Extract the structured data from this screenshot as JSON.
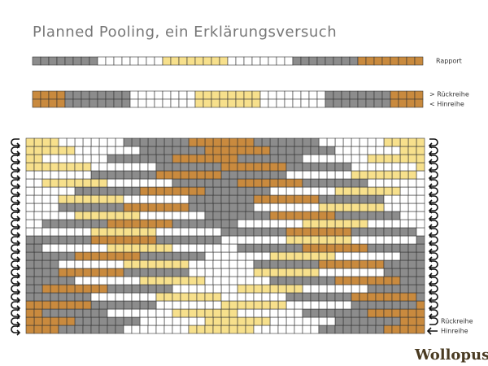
{
  "header": {
    "title": "Planned Pooling, ein Erklärungsversuch"
  },
  "rapport": {
    "label": "Rapport"
  },
  "rows_legend": {
    "back": "> Rückreihe",
    "forth": "< Hinreihe"
  },
  "grid_legend": {
    "back": "Rückreihe",
    "forth": "Hinreihe"
  },
  "logo": {
    "text": "Wollopus"
  }
}
